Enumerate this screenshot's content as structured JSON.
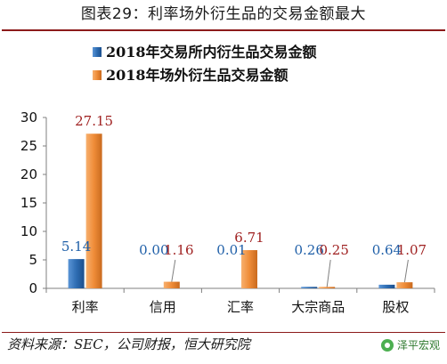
{
  "title": "图表29：利率场外衍生品的交易金额最大",
  "source": "资料来源：SEC，公司财报，恒大研究院",
  "watermark": {
    "text": "泽平宏观",
    "icon": "wechat-icon"
  },
  "chart_data": {
    "type": "bar",
    "categories": [
      "利率",
      "信用",
      "汇率",
      "大宗商品",
      "股权"
    ],
    "series": [
      {
        "name": "2018年交易所内衍生品交易金额",
        "color": "#2e6db3",
        "values": [
          5.14,
          0.0,
          0.01,
          0.26,
          0.64
        ],
        "labels": [
          "5.14",
          "0.00",
          "0.01",
          "0.26",
          "0.64"
        ]
      },
      {
        "name": "2018年场外衍生品交易金额",
        "color": "#ef8c38",
        "values": [
          27.15,
          1.16,
          6.71,
          0.25,
          1.07
        ],
        "labels": [
          "27.15",
          "1.16",
          "6.71",
          "0.25",
          "1.07"
        ]
      }
    ],
    "ylim": [
      0,
      30
    ],
    "yticks": [
      0,
      5,
      10,
      15,
      20,
      25,
      30
    ],
    "grid": false,
    "legend": "top",
    "label_colors": [
      "#1f5fa8",
      "#a02222"
    ]
  }
}
